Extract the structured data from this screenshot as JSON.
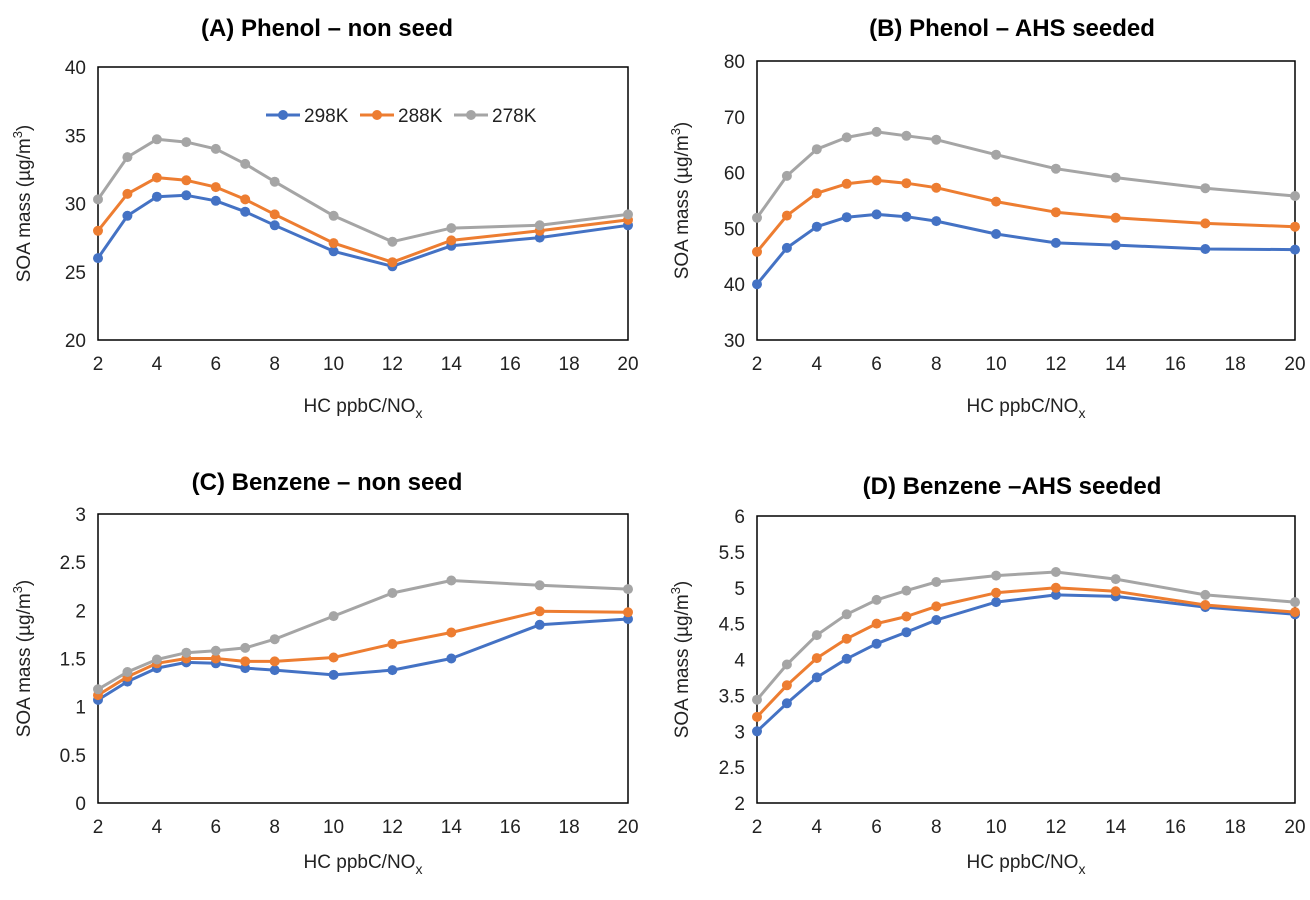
{
  "figure": {
    "series_colors": {
      "298K": "#4472C4",
      "288K": "#ED7D31",
      "278K": "#A5A5A5"
    }
  },
  "chart_data": [
    {
      "type": "line",
      "title": "(A) Phenol – non seed",
      "xlabel_main": "HC ppbC/NO",
      "xlabel_sub": "x",
      "ylabel_main": "SOA mass (µg/m",
      "ylabel_sup": "3",
      "ylabel_end": ")",
      "xlim": [
        2,
        20
      ],
      "xticks": [
        "2",
        "4",
        "6",
        "8",
        "10",
        "12",
        "14",
        "16",
        "18",
        "20"
      ],
      "ylim": [
        20,
        40
      ],
      "yticks": [
        "20",
        "25",
        "30",
        "35",
        "40"
      ],
      "legend": "top-right",
      "x": [
        2,
        3,
        4,
        5,
        6,
        7,
        8,
        10,
        12,
        14,
        17,
        20
      ],
      "series": [
        {
          "name": "298K",
          "values": [
            26.0,
            29.1,
            30.5,
            30.6,
            30.2,
            29.4,
            28.4,
            26.5,
            25.4,
            26.9,
            27.5,
            28.4
          ]
        },
        {
          "name": "288K",
          "values": [
            28.0,
            30.7,
            31.9,
            31.7,
            31.2,
            30.3,
            29.2,
            27.1,
            25.7,
            27.3,
            28.0,
            28.8
          ]
        },
        {
          "name": "278K",
          "values": [
            30.3,
            33.4,
            34.7,
            34.5,
            34.0,
            32.9,
            31.6,
            29.1,
            27.2,
            28.2,
            28.4,
            29.2
          ]
        }
      ]
    },
    {
      "type": "line",
      "title": "(B) Phenol – AHS seeded",
      "xlabel_main": "HC ppbC/NO",
      "xlabel_sub": "x",
      "ylabel_main": "SOA mass (µg/m",
      "ylabel_sup": "3",
      "ylabel_end": ")",
      "xlim": [
        2,
        20
      ],
      "xticks": [
        "2",
        "4",
        "6",
        "8",
        "10",
        "12",
        "14",
        "16",
        "18",
        "20"
      ],
      "ylim": [
        30,
        80
      ],
      "yticks": [
        "30",
        "40",
        "50",
        "60",
        "70",
        "80"
      ],
      "x": [
        2,
        3,
        4,
        5,
        6,
        7,
        8,
        10,
        12,
        14,
        17,
        20
      ],
      "series": [
        {
          "values": [
            40.0,
            46.5,
            50.3,
            52.0,
            52.5,
            52.1,
            51.3,
            49.0,
            47.4,
            47.0,
            46.3,
            46.2
          ]
        },
        {
          "values": [
            45.8,
            52.3,
            56.3,
            58.0,
            58.6,
            58.1,
            57.3,
            54.8,
            52.9,
            51.9,
            50.9,
            50.3
          ]
        },
        {
          "values": [
            51.9,
            59.4,
            64.2,
            66.3,
            67.3,
            66.6,
            65.9,
            63.2,
            60.7,
            59.1,
            57.2,
            55.8
          ]
        }
      ]
    },
    {
      "type": "line",
      "title": "(C) Benzene – non seed",
      "xlabel_main": "HC ppbC/NO",
      "xlabel_sub": "x",
      "ylabel_main": "SOA mass (µg/m",
      "ylabel_sup": "3",
      "ylabel_end": ")",
      "xlim": [
        2,
        20
      ],
      "xticks": [
        "2",
        "4",
        "6",
        "8",
        "10",
        "12",
        "14",
        "16",
        "18",
        "20"
      ],
      "ylim": [
        0,
        3
      ],
      "yticks": [
        "0",
        "0.5",
        "1",
        "1.5",
        "2",
        "2.5",
        "3"
      ],
      "x": [
        2,
        3,
        4,
        5,
        6,
        7,
        8,
        10,
        12,
        14,
        17,
        20
      ],
      "series": [
        {
          "values": [
            1.07,
            1.26,
            1.4,
            1.46,
            1.45,
            1.4,
            1.38,
            1.33,
            1.38,
            1.5,
            1.85,
            1.91
          ]
        },
        {
          "values": [
            1.12,
            1.31,
            1.45,
            1.5,
            1.5,
            1.47,
            1.47,
            1.51,
            1.65,
            1.77,
            1.99,
            1.98
          ]
        },
        {
          "values": [
            1.18,
            1.36,
            1.49,
            1.56,
            1.58,
            1.61,
            1.7,
            1.94,
            2.18,
            2.31,
            2.26,
            2.22
          ]
        }
      ]
    },
    {
      "type": "line",
      "title": "(D) Benzene –AHS seeded",
      "xlabel_main": "HC ppbC/NO",
      "xlabel_sub": "x",
      "ylabel_main": "SOA mass (µg/m",
      "ylabel_sup": "3",
      "ylabel_end": ")",
      "xlim": [
        2,
        20
      ],
      "xticks": [
        "2",
        "4",
        "6",
        "8",
        "10",
        "12",
        "14",
        "16",
        "18",
        "20"
      ],
      "ylim": [
        2,
        6
      ],
      "yticks": [
        "2",
        "2.5",
        "3",
        "3.5",
        "4",
        "4.5",
        "5",
        "5.5",
        "6"
      ],
      "x": [
        2,
        3,
        4,
        5,
        6,
        7,
        8,
        10,
        12,
        14,
        17,
        20
      ],
      "series": [
        {
          "values": [
            3.0,
            3.39,
            3.75,
            4.01,
            4.22,
            4.38,
            4.55,
            4.8,
            4.9,
            4.88,
            4.73,
            4.63
          ]
        },
        {
          "values": [
            3.2,
            3.64,
            4.02,
            4.29,
            4.5,
            4.6,
            4.74,
            4.93,
            5.0,
            4.95,
            4.76,
            4.66
          ]
        },
        {
          "values": [
            3.44,
            3.93,
            4.34,
            4.63,
            4.83,
            4.96,
            5.08,
            5.17,
            5.22,
            5.12,
            4.9,
            4.8
          ]
        }
      ]
    }
  ]
}
